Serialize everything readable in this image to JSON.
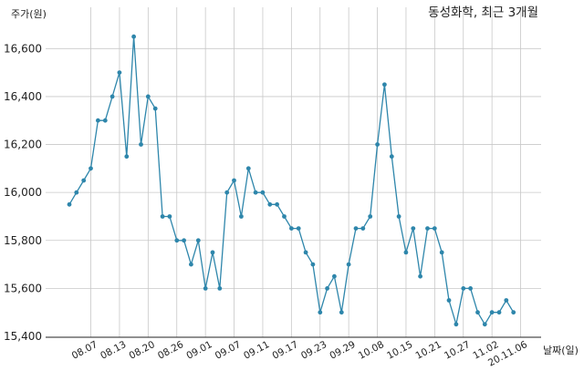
{
  "chart_data": {
    "type": "line",
    "title": "동성화학, 최근 3개월",
    "xlabel": "날짜(일)",
    "ylabel": "주가(원)",
    "ylim": [
      15400,
      16700
    ],
    "yticks": [
      15400,
      15600,
      15800,
      16000,
      16200,
      16400,
      16600
    ],
    "ytick_labels": [
      "15,400",
      "15,600",
      "15,800",
      "16,000",
      "16,200",
      "16,400",
      "16,600"
    ],
    "grid": true,
    "line_color": "#2e86ab",
    "xtick_labels": [
      "08.07",
      "08.13",
      "08.20",
      "08.26",
      "09.01",
      "09.07",
      "09.11",
      "09.17",
      "09.23",
      "09.29",
      "10.08",
      "10.15",
      "10.21",
      "10.27",
      "11.02",
      "20.11.06"
    ],
    "xtick_index": [
      3,
      7,
      11,
      15,
      19,
      23,
      27,
      31,
      35,
      39,
      43,
      47,
      51,
      55,
      59,
      63
    ],
    "series": [
      {
        "values": [
          15950,
          16000,
          16050,
          16100,
          16300,
          16300,
          16400,
          16500,
          16150,
          16650,
          16200,
          16400,
          16350,
          15900,
          15900,
          15800,
          15800,
          15700,
          15800,
          15600,
          15750,
          15600,
          16000,
          16050,
          15900,
          16100,
          16000,
          16000,
          15950,
          15950,
          15900,
          15850,
          15850,
          15750,
          15700,
          15500,
          15600,
          15650,
          15500,
          15700,
          15850,
          15850,
          15900,
          16200,
          16450,
          16150,
          15900,
          15750,
          15850,
          15650,
          15850,
          15850,
          15750,
          15550,
          15450,
          15600,
          15600,
          15500,
          15450,
          15500,
          15500,
          15550,
          15500
        ]
      }
    ]
  }
}
